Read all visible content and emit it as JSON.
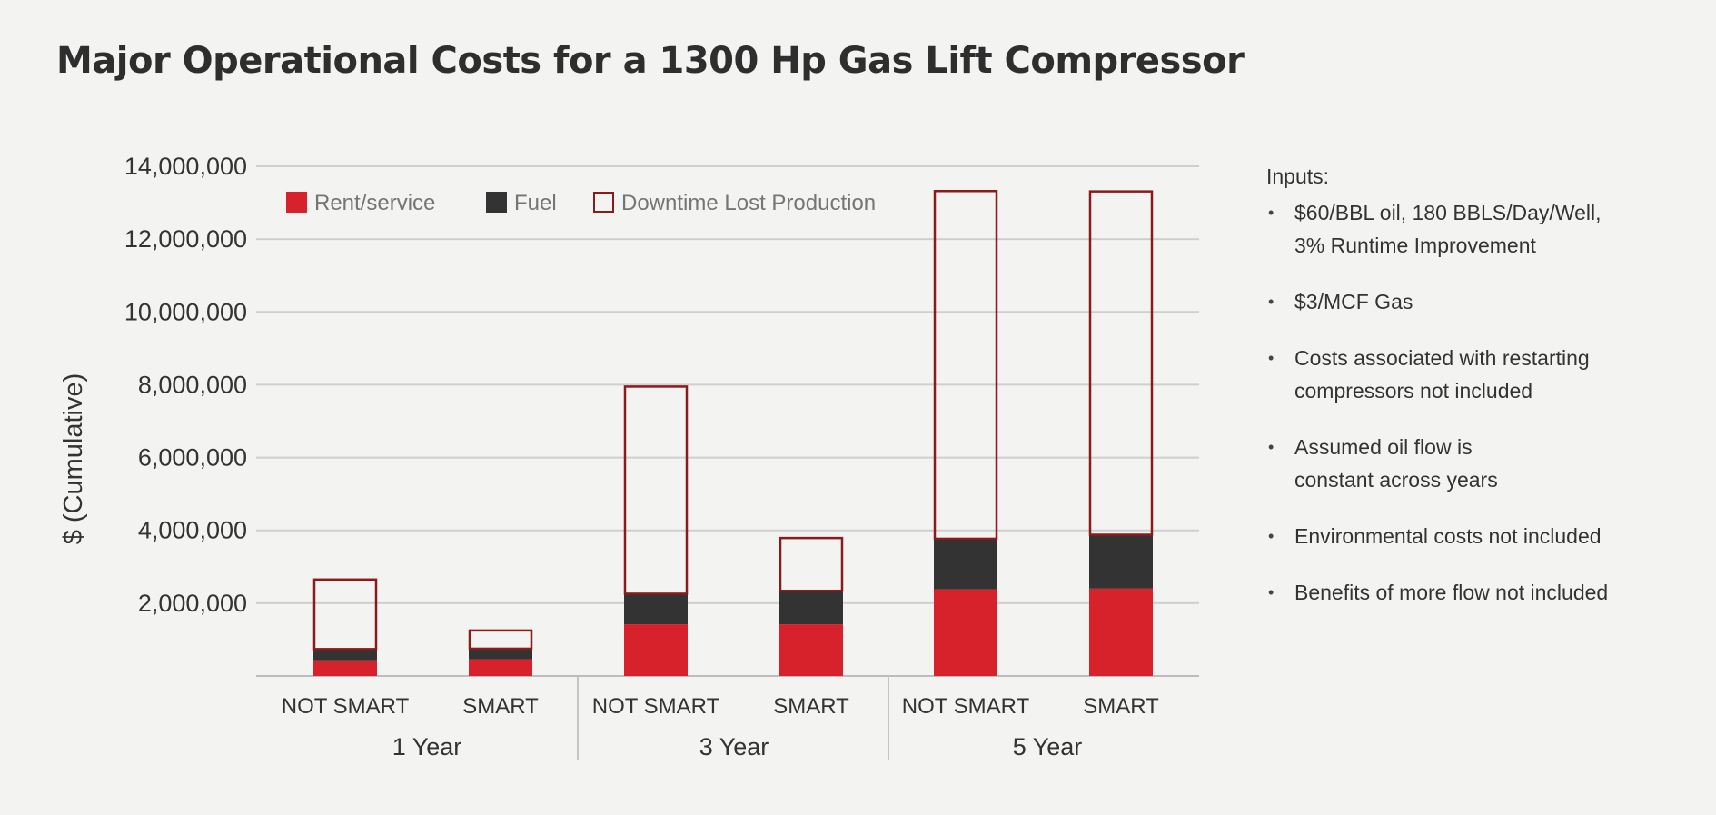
{
  "chart_data": {
    "type": "bar",
    "stacked": true,
    "title": "Major Operational Costs for a 1300 Hp Gas Lift Compressor",
    "ylabel": "$ (Cumulative)",
    "ylim": [
      0,
      14000000
    ],
    "yticks": [
      2000000,
      4000000,
      6000000,
      8000000,
      10000000,
      12000000,
      14000000
    ],
    "ytick_labels": [
      "2,000,000",
      "4,000,000",
      "6,000,000",
      "8,000,000",
      "10,000,000",
      "12,000,000",
      "14,000,000"
    ],
    "grid": true,
    "legend_position": "top-left",
    "groups": [
      "1 Year",
      "3 Year",
      "5 Year"
    ],
    "categories": [
      "NOT SMART",
      "SMART",
      "NOT SMART",
      "SMART",
      "NOT SMART",
      "SMART"
    ],
    "series": [
      {
        "name": "Rent/service",
        "color": "#d7212b",
        "style": "filled",
        "values": [
          430000,
          460000,
          1420000,
          1420000,
          2380000,
          2400000
        ]
      },
      {
        "name": "Fuel",
        "color": "#333333",
        "style": "filled",
        "values": [
          310000,
          290000,
          840000,
          920000,
          1390000,
          1480000
        ]
      },
      {
        "name": "Downtime Lost Production",
        "color": "#8b1a1a",
        "style": "outline",
        "values": [
          1910000,
          500000,
          5690000,
          1450000,
          9550000,
          9430000
        ]
      }
    ]
  },
  "inputs": {
    "heading": "Inputs:",
    "items": [
      [
        "$60/BBL oil, 180 BBLS/Day/Well,",
        "3% Runtime Improvement"
      ],
      [
        "$3/MCF Gas"
      ],
      [
        "Costs associated with restarting",
        "compressors not included"
      ],
      [
        "Assumed oil flow is",
        "constant across years"
      ],
      [
        "Environmental costs not included"
      ],
      [
        "Benefits of more flow not included"
      ]
    ]
  }
}
